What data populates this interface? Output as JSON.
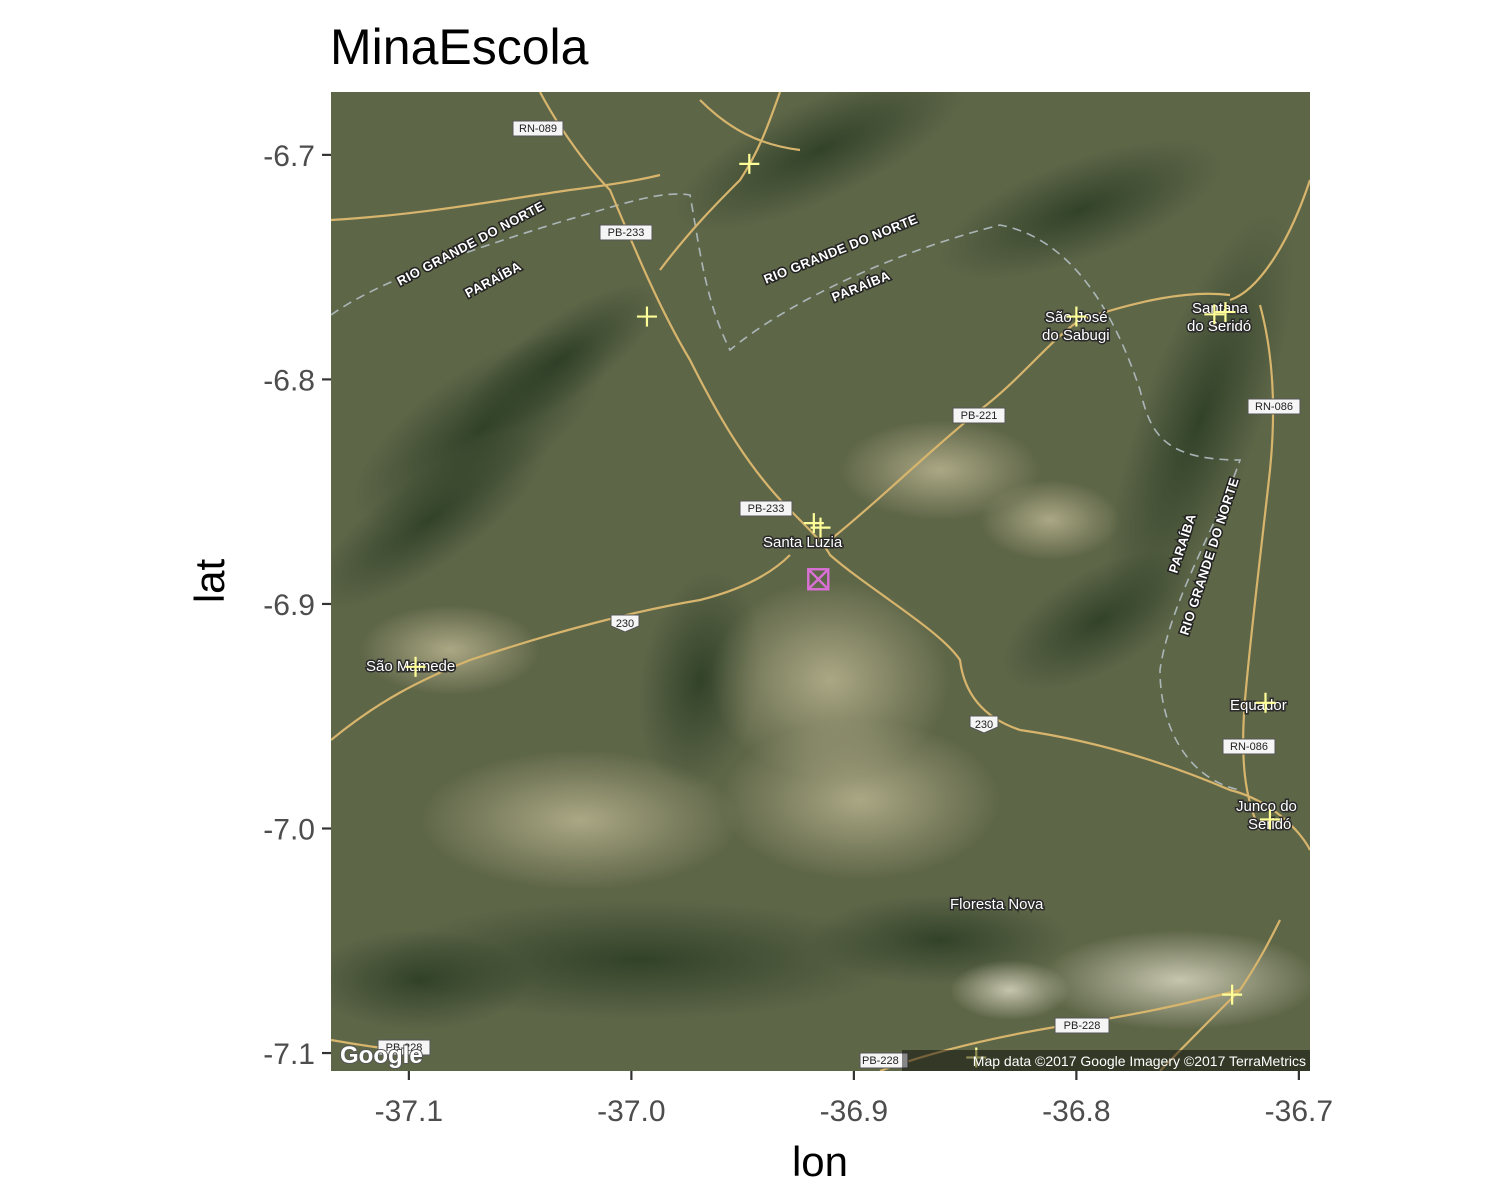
{
  "chart_data": {
    "type": "scatter",
    "title": "MinaEscola",
    "xlabel": "lon",
    "ylabel": "lat",
    "xlim": [
      -37.135,
      -36.695
    ],
    "ylim": [
      -7.108,
      -6.672
    ],
    "x_ticks": [
      -37.1,
      -37.0,
      -36.9,
      -36.8,
      -36.7
    ],
    "x_tick_labels": [
      "-37.1",
      "-37.0",
      "-36.9",
      "-36.8",
      "-36.7"
    ],
    "y_ticks": [
      -6.7,
      -6.8,
      -6.9,
      -7.0,
      -7.1
    ],
    "y_tick_labels": [
      "-6.7",
      "-6.8",
      "-6.9",
      "-7.0",
      "-7.1"
    ],
    "grid": false,
    "legend": "none",
    "basemap": "Google satellite imagery",
    "series": [
      {
        "marker": "plus",
        "color": "#ffff99",
        "points": [
          {
            "x": -36.947,
            "y": -6.704
          },
          {
            "x": -36.993,
            "y": -6.772
          },
          {
            "x": -36.8,
            "y": -6.772
          },
          {
            "x": -36.738,
            "y": -6.771
          },
          {
            "x": -36.733,
            "y": -6.77
          },
          {
            "x": -36.918,
            "y": -6.864
          },
          {
            "x": -36.915,
            "y": -6.866
          },
          {
            "x": -37.097,
            "y": -6.928
          },
          {
            "x": -36.715,
            "y": -6.944
          },
          {
            "x": -36.713,
            "y": -6.996
          },
          {
            "x": -36.73,
            "y": -7.074
          },
          {
            "x": -36.845,
            "y": -7.102
          }
        ]
      },
      {
        "marker": "square-cross",
        "color": "#da70d6",
        "points": [
          {
            "x": -36.916,
            "y": -6.889
          }
        ]
      }
    ]
  },
  "map": {
    "places": [
      "São Mamede",
      "Santa Luzia",
      "São José",
      "do Sabugi",
      "Santana",
      "do Seridó",
      "Equador",
      "Junco do",
      "Seridó",
      "Floresta Nova"
    ],
    "states": [
      "RIO GRANDE DO NORTE",
      "PARAÍBA"
    ],
    "roads": [
      "RN-089",
      "PB-233",
      "PB-221",
      "RN-086",
      "230",
      "PB-228"
    ],
    "attribution": "Map data ©2017 Google  Imagery ©2017 TerraMetrics",
    "logo": "Google"
  },
  "colors": {
    "satellite_base": "#5e6648",
    "road": "#d7b56d",
    "border": "#b9c4cc"
  }
}
